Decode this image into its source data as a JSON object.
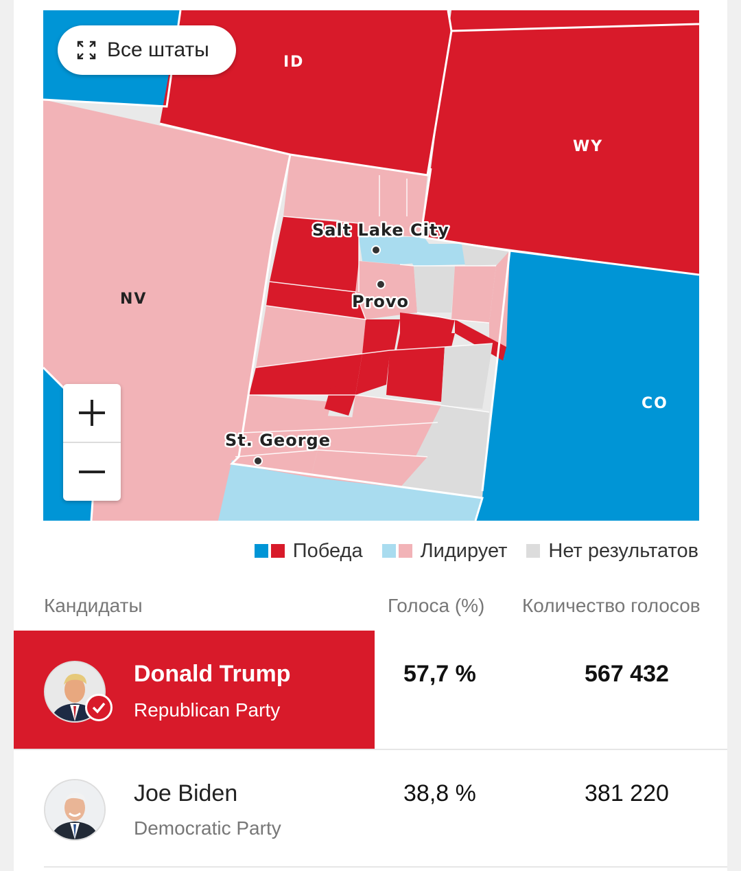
{
  "colors": {
    "win_dem": "#0095d6",
    "win_rep": "#d81a2a",
    "lead_dem": "#a9dcef",
    "lead_rep": "#f2b3b7",
    "no_results": "#dcdcdc",
    "highlight_row": "#d81a2a"
  },
  "map": {
    "all_states_label": "Все штаты",
    "states": {
      "id": "ID",
      "wy": "WY",
      "nv": "NV",
      "co": "CO"
    },
    "cities": {
      "salt_lake_city": "Salt Lake City",
      "provo": "Provo",
      "st_george": "St. George"
    },
    "zoom_in_icon": "plus-icon",
    "zoom_out_icon": "minus-icon"
  },
  "legend": {
    "win": "Победа",
    "lead": "Лидирует",
    "none": "Нет результатов"
  },
  "table": {
    "headers": {
      "candidates": "Кандидаты",
      "percent": "Голоса (%)",
      "votes": "Количество голосов"
    },
    "rows": [
      {
        "name": "Donald Trump",
        "party": "Republican Party",
        "percent": "57,7 %",
        "votes": "567 432",
        "winner": true
      },
      {
        "name": "Joe Biden",
        "party": "Democratic Party",
        "percent": "38,8 %",
        "votes": "381 220",
        "winner": false
      }
    ]
  }
}
